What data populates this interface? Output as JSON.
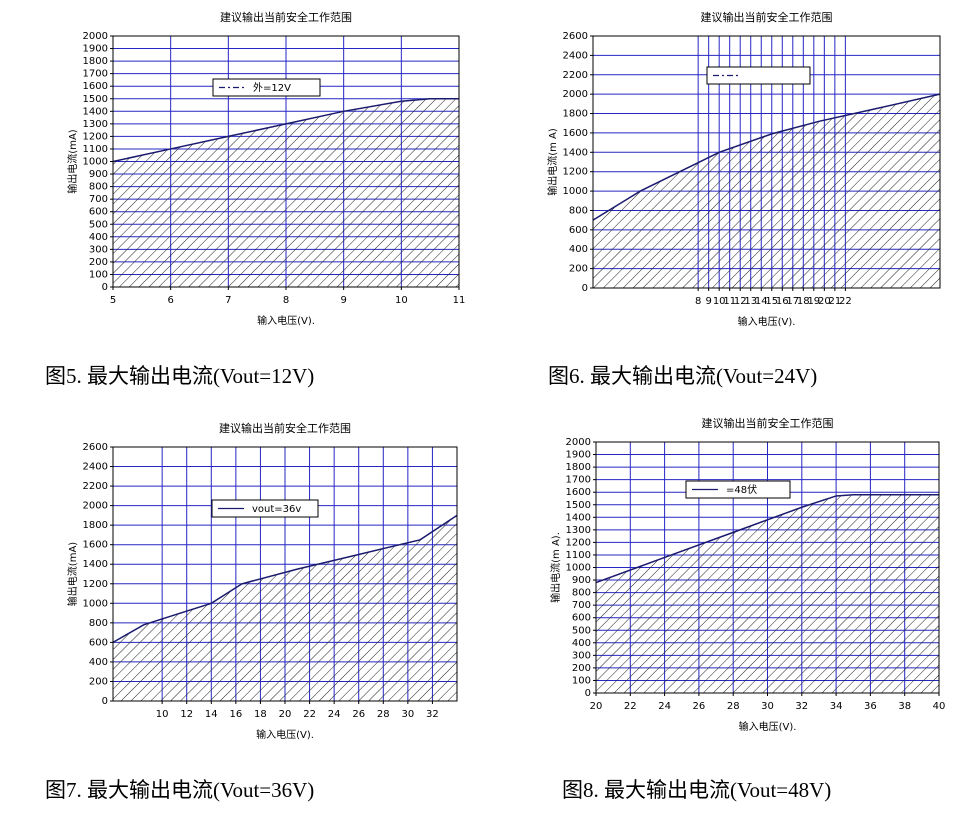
{
  "chart_data": [
    {
      "type": "area",
      "title": "建议输出当前安全工作范围",
      "caption": "图5. 最大输出电流(Vout=12V)",
      "x_label": "输入电压(V).",
      "y_label": "输出电流(mA)",
      "legend_style": "dash-dot",
      "grid": true,
      "x": [
        5,
        6,
        7,
        8,
        9,
        10,
        10.5,
        11
      ],
      "series": [
        {
          "name": "外=12V",
          "color": "#1a1a6e",
          "values": [
            1000,
            1100,
            1200,
            1300,
            1400,
            1480,
            1500,
            1500
          ]
        }
      ],
      "xlim": [
        5,
        11
      ],
      "xticks": [
        5,
        6,
        7,
        8,
        9,
        10,
        11
      ],
      "ylim": [
        0,
        2000
      ],
      "yticks": [
        0,
        100,
        200,
        300,
        400,
        500,
        600,
        700,
        800,
        900,
        1000,
        1100,
        1200,
        1300,
        1400,
        1500,
        1600,
        1700,
        1800,
        1900,
        2000
      ]
    },
    {
      "type": "area",
      "title": "建议输出当前安全工作范围",
      "caption": "图6. 最大输出电流(Vout=24V)",
      "x_label": "输入电压(V).",
      "y_label": "输出电流(m A)",
      "legend_style": "dash-dot",
      "grid": true,
      "x": [
        -2,
        2.5,
        10,
        15,
        19.5,
        24.5,
        31
      ],
      "series": [
        {
          "color": "#1a1a6e",
          "values": [
            700,
            1000,
            1400,
            1590,
            1720,
            1840,
            2000
          ]
        }
      ],
      "xlim": [
        -2,
        31
      ],
      "xticks": [
        8,
        9,
        10,
        11,
        12,
        13,
        14,
        15,
        16,
        17,
        18,
        19,
        20,
        21,
        22
      ],
      "ylim": [
        0,
        2600
      ],
      "yticks": [
        0,
        200,
        400,
        600,
        800,
        1000,
        1200,
        1400,
        1600,
        1800,
        2000,
        2200,
        2400,
        2600
      ]
    },
    {
      "type": "area",
      "title": "建议输出当前安全工作范围",
      "caption": "图7. 最大输出电流(Vout=36V)",
      "x_label": "输入电压(V).",
      "y_label": "输出电流(mA)",
      "legend_style": "solid",
      "grid": true,
      "x": [
        6,
        8.5,
        11.5,
        14,
        16.5,
        21,
        26,
        31,
        34
      ],
      "series": [
        {
          "name": "vout=36v",
          "color": "#1a1a6e",
          "values": [
            600,
            780,
            900,
            1000,
            1200,
            1350,
            1500,
            1650,
            1900
          ]
        }
      ],
      "xlim": [
        6,
        34
      ],
      "xticks": [
        10,
        12,
        14,
        16,
        18,
        20,
        22,
        24,
        26,
        28,
        30,
        32
      ],
      "ylim": [
        0,
        2600
      ],
      "yticks": [
        0,
        200,
        400,
        600,
        800,
        1000,
        1200,
        1400,
        1600,
        1800,
        2000,
        2200,
        2400,
        2600
      ]
    },
    {
      "type": "area",
      "title": "建议输出当前安全工作范围",
      "caption": "图8. 最大输出电流(Vout=48V)",
      "x_label": "输入电压(V).",
      "y_label": "输出电流(m A).",
      "legend_style": "solid",
      "grid": true,
      "x": [
        20,
        24,
        28,
        32,
        34,
        35,
        40
      ],
      "series": [
        {
          "name": "=48伏",
          "color": "#1a1a6e",
          "values": [
            880,
            1080,
            1280,
            1480,
            1570,
            1580,
            1580
          ]
        }
      ],
      "xlim": [
        20,
        40
      ],
      "xticks": [
        20,
        22,
        24,
        26,
        28,
        30,
        32,
        34,
        36,
        38,
        40
      ],
      "ylim": [
        0,
        2000
      ],
      "yticks": [
        0,
        100,
        200,
        300,
        400,
        500,
        600,
        700,
        800,
        900,
        1000,
        1100,
        1200,
        1300,
        1400,
        1500,
        1600,
        1700,
        1800,
        1900,
        2000
      ]
    }
  ]
}
